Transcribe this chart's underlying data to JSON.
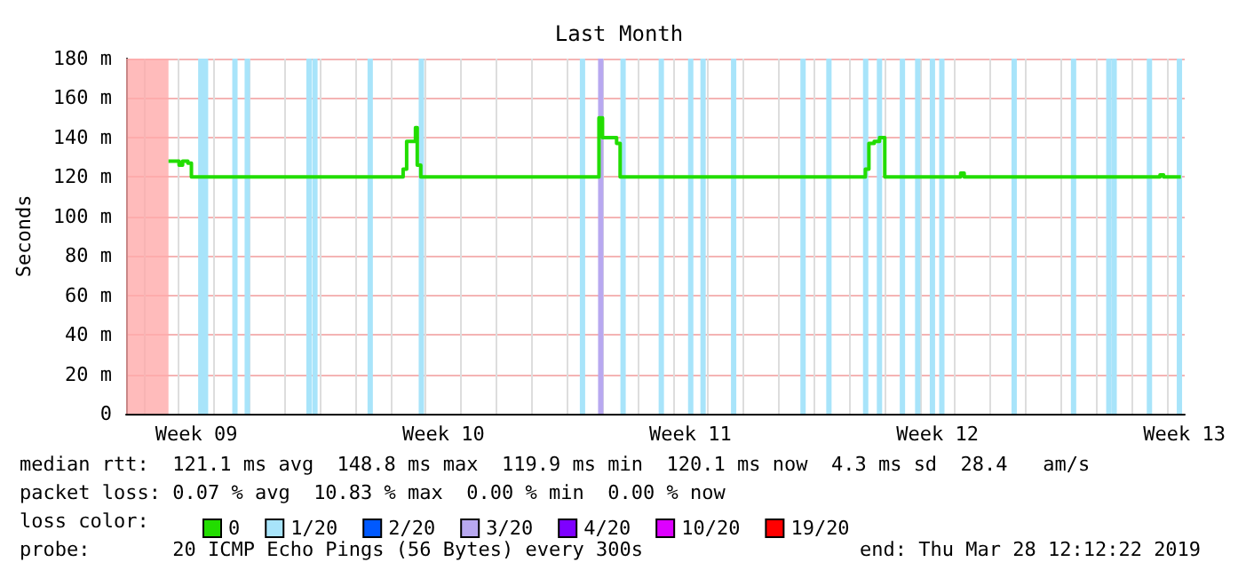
{
  "chart_data": {
    "type": "step",
    "title": "Last Month",
    "ylabel": "Seconds",
    "xlim": [
      "2019-02-26T12:12",
      "2019-03-28T12:12"
    ],
    "xticks": [
      {
        "value": "2019-02-28T12:00",
        "label": "Week 09"
      },
      {
        "value": "2019-03-07T12:00",
        "label": "Week 10"
      },
      {
        "value": "2019-03-14T12:00",
        "label": "Week 11"
      },
      {
        "value": "2019-03-21T12:00",
        "label": "Week 12"
      },
      {
        "value": "2019-03-28T12:00",
        "label": "Week 13"
      },
      {
        "value": "2019-02-27",
        "label": null
      },
      {
        "value": "2019-02-28",
        "label": null
      },
      {
        "value": "2019-03-01",
        "label": null
      },
      {
        "value": "2019-03-02",
        "label": null
      },
      {
        "value": "2019-03-03",
        "label": null
      },
      {
        "value": "2019-03-04",
        "label": null
      },
      {
        "value": "2019-03-05",
        "label": null
      },
      {
        "value": "2019-03-06",
        "label": null
      },
      {
        "value": "2019-03-07",
        "label": null
      },
      {
        "value": "2019-03-08",
        "label": null
      },
      {
        "value": "2019-03-09",
        "label": null
      },
      {
        "value": "2019-03-10",
        "label": null
      },
      {
        "value": "2019-03-11",
        "label": null
      },
      {
        "value": "2019-03-12",
        "label": null
      },
      {
        "value": "2019-03-13",
        "label": null
      },
      {
        "value": "2019-03-14",
        "label": null
      },
      {
        "value": "2019-03-15",
        "label": null
      },
      {
        "value": "2019-03-16",
        "label": null
      },
      {
        "value": "2019-03-17",
        "label": null
      },
      {
        "value": "2019-03-18",
        "label": null
      },
      {
        "value": "2019-03-19",
        "label": null
      },
      {
        "value": "2019-03-20",
        "label": null
      },
      {
        "value": "2019-03-21",
        "label": null
      },
      {
        "value": "2019-03-22",
        "label": null
      },
      {
        "value": "2019-03-23",
        "label": null
      },
      {
        "value": "2019-03-24",
        "label": null
      },
      {
        "value": "2019-03-25",
        "label": null
      },
      {
        "value": "2019-03-26",
        "label": null
      },
      {
        "value": "2019-03-27",
        "label": null
      },
      {
        "value": "2019-03-28",
        "label": null
      }
    ],
    "ylim": [
      0,
      180
    ],
    "yticks": [
      0,
      {
        "value": 20,
        "label": "20 m"
      },
      {
        "value": 40,
        "label": "40 m"
      },
      {
        "value": 60,
        "label": "60 m"
      },
      {
        "value": 80,
        "label": "80 m"
      },
      {
        "value": 100,
        "label": "100 m"
      },
      {
        "value": 120,
        "label": "120 m"
      },
      {
        "value": 140,
        "label": "140 m"
      },
      {
        "value": 160,
        "label": "160 m"
      },
      {
        "value": 180,
        "label": "180 m"
      }
    ],
    "grid": true,
    "legend": "bottom",
    "bands": [
      {
        "axis": "x",
        "from": "2019-02-26T12:12",
        "to": "2019-02-27T17:00",
        "color": "#ffaaaa"
      }
    ],
    "series": [
      {
        "name": "0",
        "color": "#22dd00",
        "x": [
          "2019-02-27T17:00",
          "2019-02-28T00:12",
          "2019-02-28T02:36",
          "2019-02-28T06:12",
          "2019-02-28T08:36",
          "2019-03-06T08:36",
          "2019-03-06T11:00",
          "2019-03-06T17:00",
          "2019-03-06T18:12",
          "2019-03-06T20:36",
          "2019-03-11T21:48",
          "2019-03-12T00:12",
          "2019-03-12T09:48",
          "2019-03-12T12:12",
          "2019-03-19T11:00",
          "2019-03-19T13:24",
          "2019-03-19T17:00",
          "2019-03-19T20:36",
          "2019-03-20T00:12",
          "2019-03-22T03:48",
          "2019-03-22T06:12",
          "2019-03-27T19:24",
          "2019-03-27T21:48",
          "2019-03-28T09:36"
        ],
        "values": [
          128,
          126,
          128,
          127,
          120,
          124,
          138,
          145,
          126,
          120,
          150,
          140,
          137,
          120,
          124,
          137,
          138,
          140,
          120,
          122,
          120,
          121,
          120,
          120
        ]
      },
      {
        "name": "1/20",
        "type": "bar",
        "color": "#a8e4fa",
        "x": [
          "2019-02-28T15:00",
          "2019-02-28T18:12",
          "2019-03-01T14:12",
          "2019-03-01T22:36",
          "2019-03-03T16:36",
          "2019-03-03T20:36",
          "2019-03-05T10:12",
          "2019-03-06T21:00",
          "2019-03-11T10:36",
          "2019-03-12T14:12",
          "2019-03-13T16:12",
          "2019-03-14T12:12",
          "2019-03-14T20:36",
          "2019-03-15T17:24",
          "2019-03-17T16:36",
          "2019-03-18T10:12",
          "2019-03-19T11:12",
          "2019-03-19T20:36",
          "2019-03-20T12:12",
          "2019-03-20T22:36",
          "2019-03-21T08:36",
          "2019-03-21T15:00",
          "2019-03-23T16:12",
          "2019-03-25T08:36",
          "2019-03-26T08:36",
          "2019-03-26T12:12",
          "2019-03-27T12:12",
          "2019-03-28T08:36"
        ],
        "values": [
          180,
          180,
          180,
          180,
          180,
          180,
          180,
          180,
          180,
          180,
          180,
          180,
          180,
          180,
          180,
          180,
          180,
          180,
          180,
          180,
          180,
          180,
          180,
          180,
          180,
          180,
          180,
          180
        ]
      },
      {
        "name": "2/20",
        "type": "bar",
        "color": "#0059ff"
      },
      {
        "name": "3/20",
        "type": "bar",
        "color": "#b8a8f0",
        "x": [
          "2019-03-11T23:00"
        ],
        "values": [
          180
        ]
      },
      {
        "name": "4/20",
        "type": "bar",
        "color": "#7e00ff"
      },
      {
        "name": "10/20",
        "type": "bar",
        "color": "#dd00ff"
      },
      {
        "name": "19/20",
        "type": "bar",
        "color": "#ff0000"
      }
    ],
    "annotations": [
      "median rtt:  121.1 ms avg  148.8 ms max  119.9 ms min  120.1 ms now  4.3 ms sd  28.4   am/s",
      "packet loss: 0.07 % avg  10.83 % max  0.00 % min  0.00 % now",
      "loss color:",
      "probe:       20 ICMP Echo Pings (56 Bytes) every 300s",
      "end: Thu Mar 28 12:12:22 2019"
    ]
  }
}
